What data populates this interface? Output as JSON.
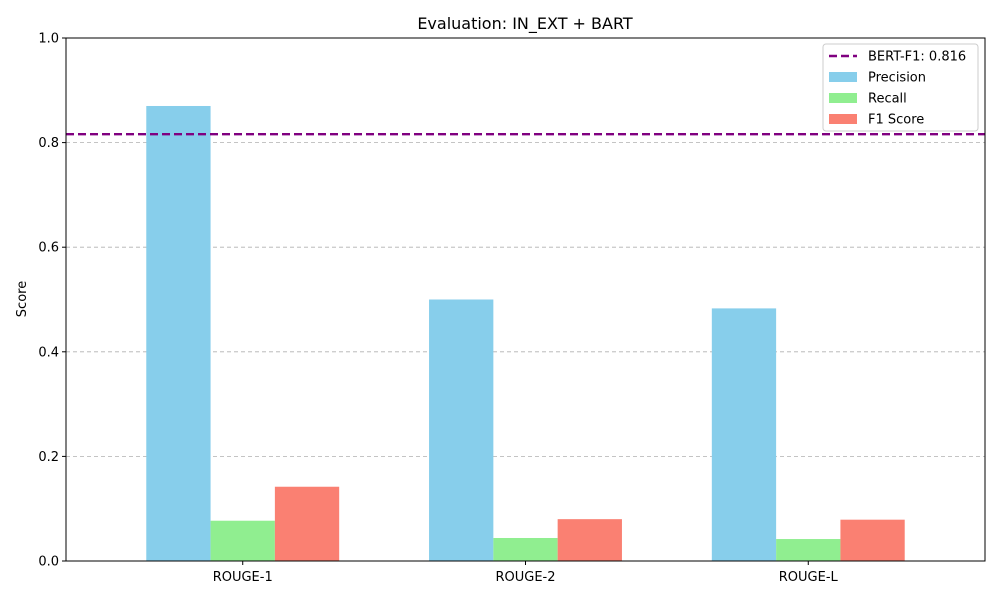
{
  "chart_data": {
    "type": "bar",
    "title": "Evaluation: IN_EXT + BART",
    "xlabel": "",
    "ylabel": "Score",
    "ylim": [
      0,
      1.0
    ],
    "yticks": [
      "0.0",
      "0.2",
      "0.4",
      "0.6",
      "0.8",
      "1.0"
    ],
    "categories": [
      "ROUGE-1",
      "ROUGE-2",
      "ROUGE-L"
    ],
    "series": [
      {
        "name": "Precision",
        "color": "#87CEEB",
        "values": [
          0.87,
          0.5,
          0.483
        ]
      },
      {
        "name": "Recall",
        "color": "#90EE90",
        "values": [
          0.077,
          0.044,
          0.042
        ]
      },
      {
        "name": "F1 Score",
        "color": "#FA8072",
        "values": [
          0.142,
          0.08,
          0.079
        ]
      }
    ],
    "reference_line": {
      "label": "BERT-F1: 0.816",
      "value": 0.816,
      "color": "#800080",
      "style": "dashed"
    },
    "grid": {
      "y": true,
      "x": false,
      "style": "dashed"
    },
    "legend": "top-right"
  }
}
